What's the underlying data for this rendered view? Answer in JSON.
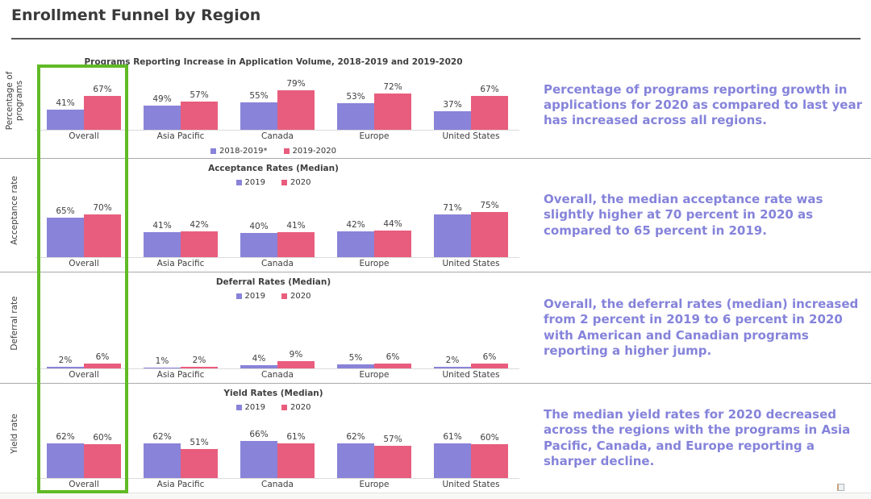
{
  "header": {
    "title": "Enrollment Funnel by Region"
  },
  "colors": {
    "series": [
      "#8983d9",
      "#e85d7d"
    ],
    "highlight_box": "#60ba25",
    "annotation_text": "#8583da",
    "divider": "#a9a9a9"
  },
  "annotations": [
    "Percentage of programs reporting growth in applications for 2020 as compared to last year has increased across all regions.",
    "Overall, the median acceptance rate was slightly higher at 70 percent in 2020 as compared to 65 percent in 2019.",
    "Overall, the deferral rates (median) increased from 2 percent in 2019 to 6 percent in 2020 with American and Canadian programs reporting a higher jump.",
    "The median yield rates for 2020 decreased across the regions with the programs in Asia Pacific, Canada, and Europe reporting a sharper decline."
  ],
  "chart_data": [
    {
      "type": "bar",
      "title": "Programs Reporting Increase in Application Volume, 2018-2019 and 2019-2020",
      "ylabel": "Percentage of programs",
      "categories": [
        "Overall",
        "Asia Pacific",
        "Canada",
        "Europe",
        "United States"
      ],
      "series": [
        {
          "name": "2018-2019*",
          "values": [
            41,
            49,
            55,
            53,
            37
          ]
        },
        {
          "name": "2019-2020",
          "values": [
            67,
            57,
            79,
            72,
            67
          ]
        }
      ],
      "value_suffix": "%",
      "ylim": [
        0,
        100
      ],
      "grid": false,
      "legend_position": "bottom"
    },
    {
      "type": "bar",
      "title": "Acceptance Rates (Median)",
      "ylabel": "Acceptance rate",
      "categories": [
        "Overall",
        "Asia Pacific",
        "Canada",
        "Europe",
        "United States"
      ],
      "series": [
        {
          "name": "2019",
          "values": [
            65,
            41,
            40,
            42,
            71
          ]
        },
        {
          "name": "2020",
          "values": [
            70,
            42,
            41,
            44,
            75
          ]
        }
      ],
      "value_suffix": "%",
      "ylim": [
        0,
        100
      ],
      "grid": false,
      "legend_position": "top"
    },
    {
      "type": "bar",
      "title": "Deferral Rates (Median)",
      "ylabel": "Deferral rate",
      "categories": [
        "Overall",
        "Asia Pacific",
        "Canada",
        "Europe",
        "United States"
      ],
      "series": [
        {
          "name": "2019",
          "values": [
            2,
            1,
            4,
            5,
            2
          ]
        },
        {
          "name": "2020",
          "values": [
            6,
            2,
            9,
            6,
            6
          ]
        }
      ],
      "value_suffix": "%",
      "ylim": [
        0,
        100
      ],
      "grid": false,
      "legend_position": "top"
    },
    {
      "type": "bar",
      "title": "Yield Rates (Median)",
      "ylabel": "Yield rate",
      "categories": [
        "Overall",
        "Asia Pacific",
        "Canada",
        "Europe",
        "United States"
      ],
      "series": [
        {
          "name": "2019",
          "values": [
            62,
            62,
            66,
            62,
            61
          ]
        },
        {
          "name": "2020",
          "values": [
            60,
            51,
            61,
            57,
            60
          ]
        }
      ],
      "value_suffix": "%",
      "ylim": [
        0,
        100
      ],
      "grid": false,
      "legend_position": "top"
    }
  ],
  "highlight": {
    "label": "overall-column-highlight"
  }
}
